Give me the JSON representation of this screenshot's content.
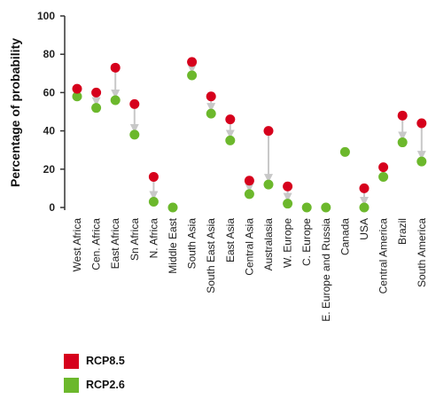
{
  "chart_data": {
    "type": "scatter",
    "ylabel": "Percentage of probability",
    "ylim": [
      0,
      100
    ],
    "yticks": [
      0,
      20,
      40,
      60,
      80,
      100
    ],
    "grid": false,
    "legend_position": "bottom-left",
    "categories": [
      "West Africa",
      "Cen. Africa",
      "East Africa",
      "Sn Africa",
      "N. Africa",
      "Middle East",
      "South Asia",
      "South East Asia",
      "East Asia",
      "Central Asia",
      "Australasia",
      "W. Europe",
      "C. Europe",
      "E. Europe and Russia",
      "Canada",
      "USA",
      "Central America",
      "Brazil",
      "South America"
    ],
    "series": [
      {
        "name": "RCP8.5",
        "color": "#d6001c",
        "values": [
          62,
          60,
          73,
          54,
          16,
          null,
          76,
          58,
          46,
          14,
          40,
          11,
          null,
          null,
          null,
          10,
          21,
          48,
          44
        ]
      },
      {
        "name": "RCP2.6",
        "color": "#6cb82c",
        "values": [
          58,
          52,
          56,
          38,
          3,
          0,
          69,
          49,
          35,
          7,
          12,
          2,
          0,
          0,
          29,
          0,
          16,
          34,
          24
        ]
      }
    ],
    "arrow_color": "#c8c8c8"
  }
}
